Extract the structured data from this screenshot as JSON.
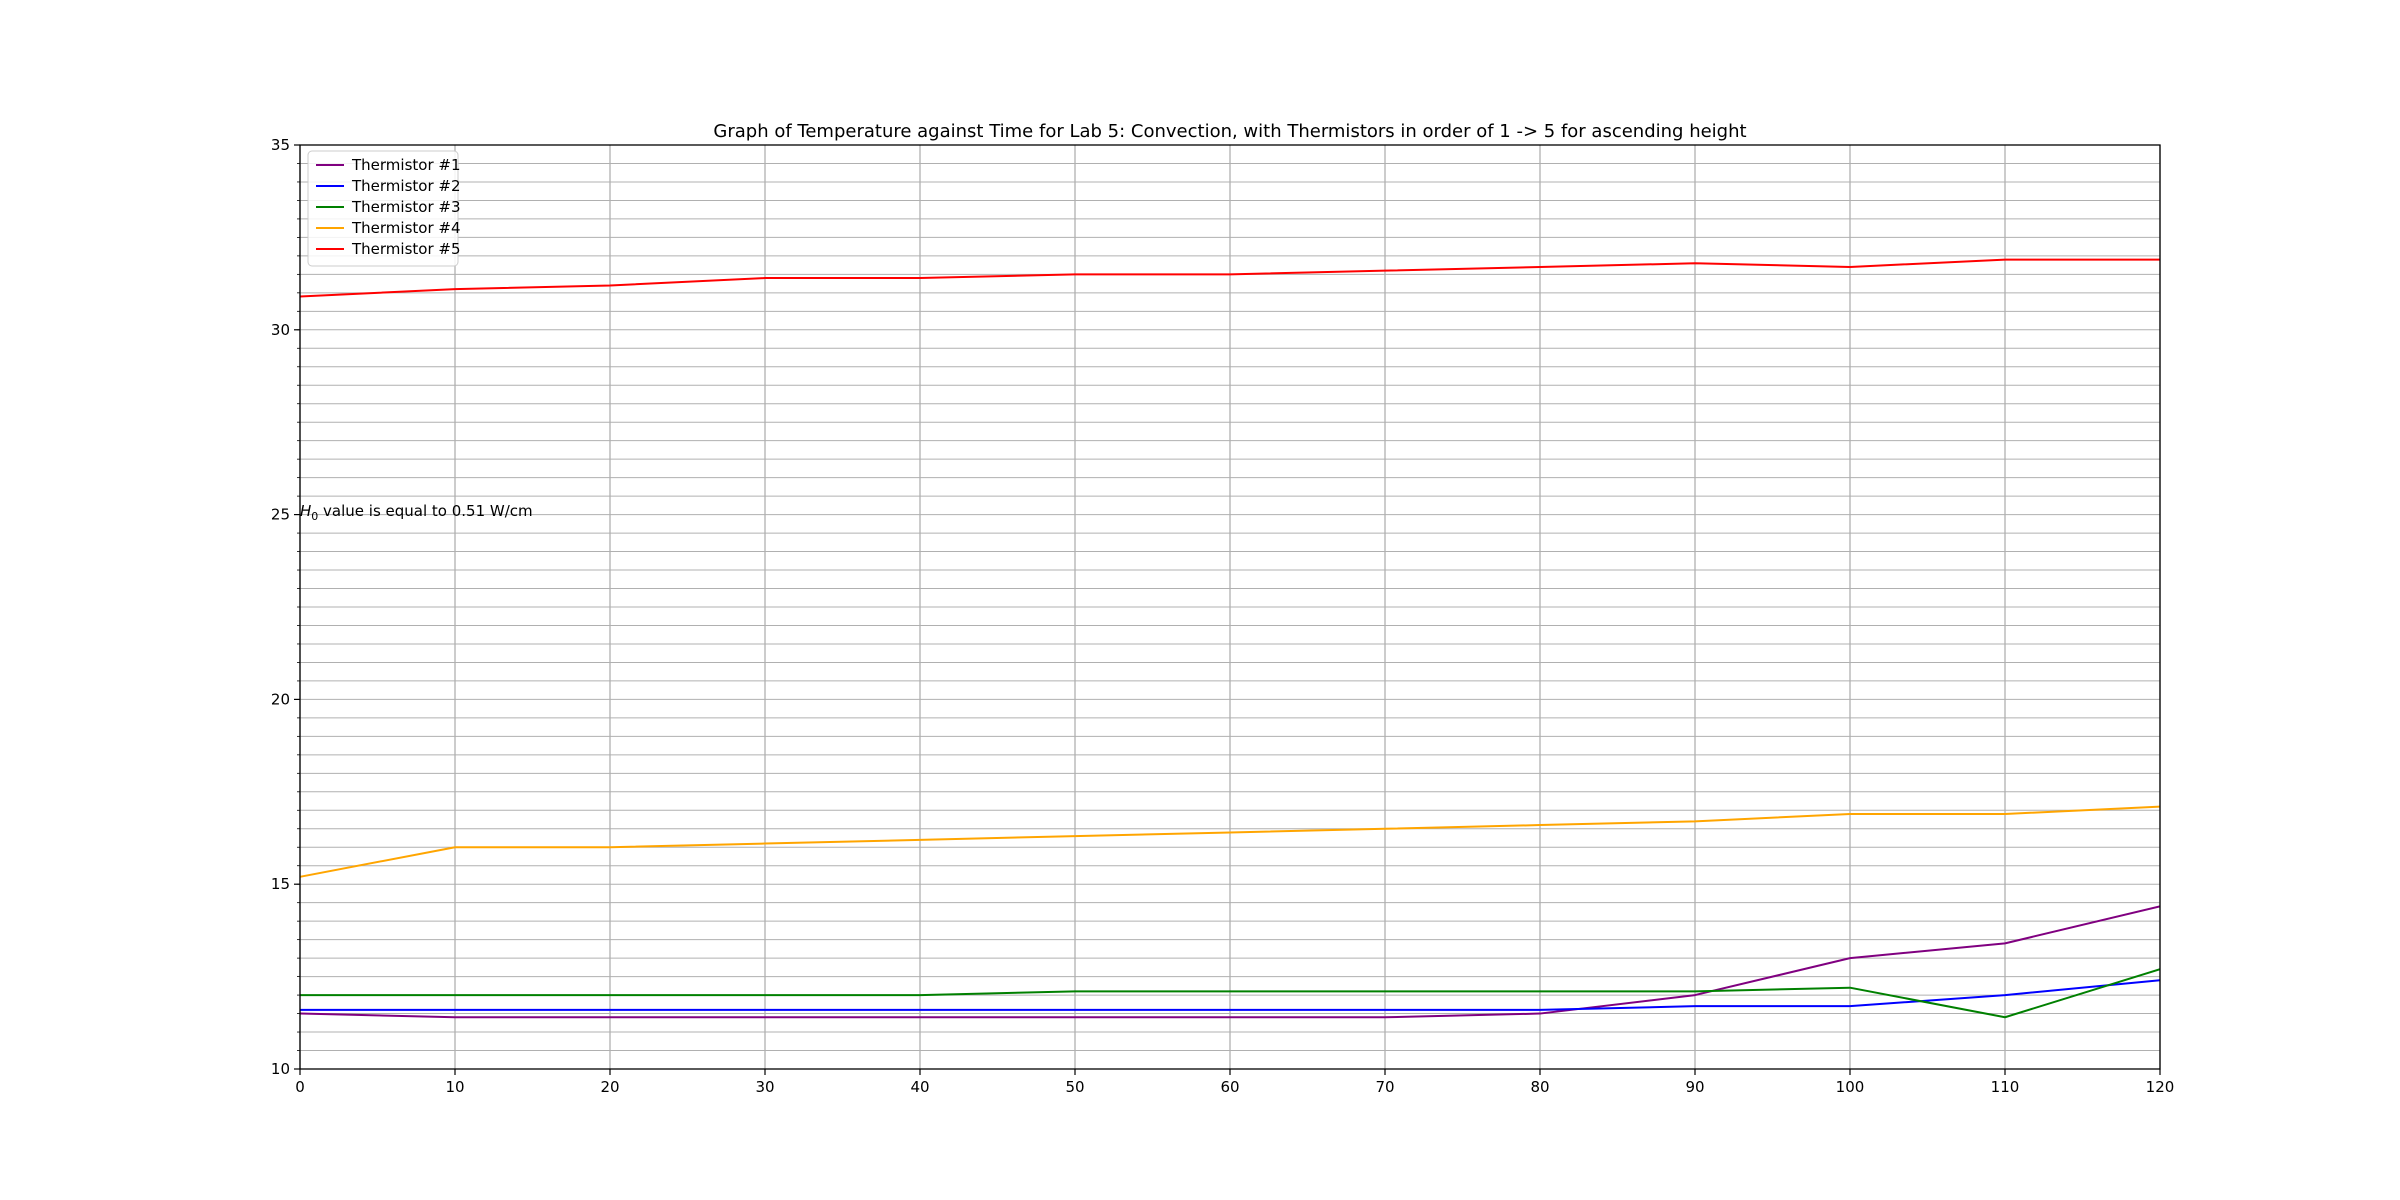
{
  "chart_data": {
    "type": "line",
    "title": "Graph of Temperature against Time for Lab 5: Convection, with Thermistors in order of 1 -> 5 for ascending height",
    "xlabel": "",
    "ylabel": "",
    "xlim": [
      0,
      120
    ],
    "ylim": [
      10,
      35
    ],
    "xticks": [
      0,
      10,
      20,
      30,
      40,
      50,
      60,
      70,
      80,
      90,
      100,
      110,
      120
    ],
    "yticks": [
      10,
      15,
      20,
      25,
      30,
      35
    ],
    "minor_y_step": 0.5,
    "grid": true,
    "legend_position": "top-left",
    "annotation": {
      "math": "H",
      "sub": "0",
      "text": " value is equal to 0.51 W/cm",
      "x": 0,
      "y": 25.1
    },
    "x": [
      0,
      10,
      20,
      30,
      40,
      50,
      60,
      70,
      80,
      90,
      100,
      110,
      120
    ],
    "series": [
      {
        "name": "Thermistor #1",
        "color": "#800080",
        "values": [
          11.5,
          11.4,
          11.4,
          11.4,
          11.4,
          11.4,
          11.4,
          11.4,
          11.5,
          12.0,
          13.0,
          13.4,
          14.4
        ]
      },
      {
        "name": "Thermistor #2",
        "color": "#0000ff",
        "values": [
          11.6,
          11.6,
          11.6,
          11.6,
          11.6,
          11.6,
          11.6,
          11.6,
          11.6,
          11.7,
          11.7,
          12.0,
          12.4
        ]
      },
      {
        "name": "Thermistor #3",
        "color": "#008000",
        "values": [
          12.0,
          12.0,
          12.0,
          12.0,
          12.0,
          12.1,
          12.1,
          12.1,
          12.1,
          12.1,
          12.2,
          11.4,
          12.7
        ]
      },
      {
        "name": "Thermistor #4",
        "color": "#ffa500",
        "values": [
          15.2,
          16.0,
          16.0,
          16.1,
          16.2,
          16.3,
          16.4,
          16.5,
          16.6,
          16.7,
          16.9,
          16.9,
          17.1
        ]
      },
      {
        "name": "Thermistor #5",
        "color": "#ff0000",
        "values": [
          30.9,
          31.1,
          31.2,
          31.4,
          31.4,
          31.5,
          31.5,
          31.6,
          31.7,
          31.8,
          31.7,
          31.9,
          31.9
        ]
      }
    ]
  }
}
